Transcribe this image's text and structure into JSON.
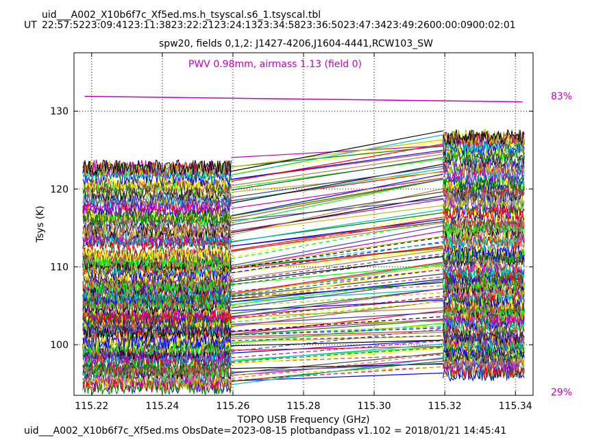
{
  "header": {
    "title": "uid___A002_X10b6f7c_Xf5ed.ms.h_tsyscal.s6_1.tsyscal.tbl",
    "ut_label": "UT",
    "ut_times": "22:57:5223:09:4123:11:3823:22:2123:24:1323:34:5823:36:5023:47:3423:49:2600:00:0900:02:01",
    "subtitle": "spw20,  fields 0,1,2: J1427-4206,J1604-4441,RCW103_SW"
  },
  "footer": {
    "text": "uid___A002_X10b6f7c_Xf5ed.ms  ObsDate=2023-08-15   plotbandpass v1.102 = 2018/01/21 14:45:41"
  },
  "chart_data": {
    "type": "line",
    "title": "spw20,  fields 0,1,2: J1427-4206,J1604-4441,RCW103_SW",
    "xlabel": "TOPO USB Frequency (GHz)",
    "ylabel": "Tsys (K)",
    "xlim": [
      115.215,
      115.345
    ],
    "ylim": [
      93.5,
      137.5
    ],
    "xticks": [
      "115.22",
      "115.24",
      "115.26",
      "115.28",
      "115.30",
      "115.32",
      "115.34"
    ],
    "yticks": [
      "100",
      "110",
      "120",
      "130"
    ],
    "grid": true,
    "annotation": "PWV 0.98mm, airmass 1.13 (field 0)",
    "annotation_color": "#bf00bf",
    "right_labels": [
      "83%",
      "29%"
    ],
    "right_label_color": "#bf00bf",
    "atmosphere_transmission": {
      "name": "transmission",
      "x": [
        115.218,
        115.342
      ],
      "y": [
        131.9,
        131.2
      ],
      "color": "#bf00bf"
    },
    "bands": [
      {
        "x": [
          115.2175,
          115.2595
        ]
      },
      {
        "x": [
          115.3195,
          115.3425
        ]
      }
    ],
    "colors": [
      "#0000ff",
      "#008000",
      "#ff0000",
      "#00bfbf",
      "#bf00bf",
      "#bfbf00",
      "#000000",
      "#3f3fbf",
      "#bf7f3f",
      "#00ff00",
      "#3f3f3f",
      "#bf3f3f",
      "#ffff00"
    ],
    "traces_left_band": [
      95.0,
      95.6,
      96.3,
      97.2,
      98.0,
      98.6,
      99.3,
      100.1,
      100.8,
      101.5,
      102.2,
      102.8,
      103.4,
      104.0,
      104.6,
      105.2,
      105.8,
      106.4,
      107.0,
      107.6,
      108.2,
      108.9,
      109.6,
      110.3,
      111.0,
      112.0,
      113.0,
      114.0,
      115.0,
      116.0,
      117.0,
      118.0,
      119.0,
      120.0,
      121.0,
      122.0,
      123.0
    ],
    "traces_right_band": [
      96.8,
      97.5,
      98.2,
      99.0,
      99.8,
      100.5,
      101.2,
      102.0,
      102.7,
      103.4,
      104.1,
      104.8,
      105.5,
      106.2,
      106.9,
      107.6,
      108.3,
      109.0,
      109.8,
      110.6,
      111.4,
      112.3,
      113.2,
      114.2,
      115.2,
      116.2,
      117.2,
      118.2,
      119.2,
      120.2,
      121.2,
      122.2,
      123.2,
      124.2,
      125.2,
      126.0,
      126.6
    ]
  }
}
